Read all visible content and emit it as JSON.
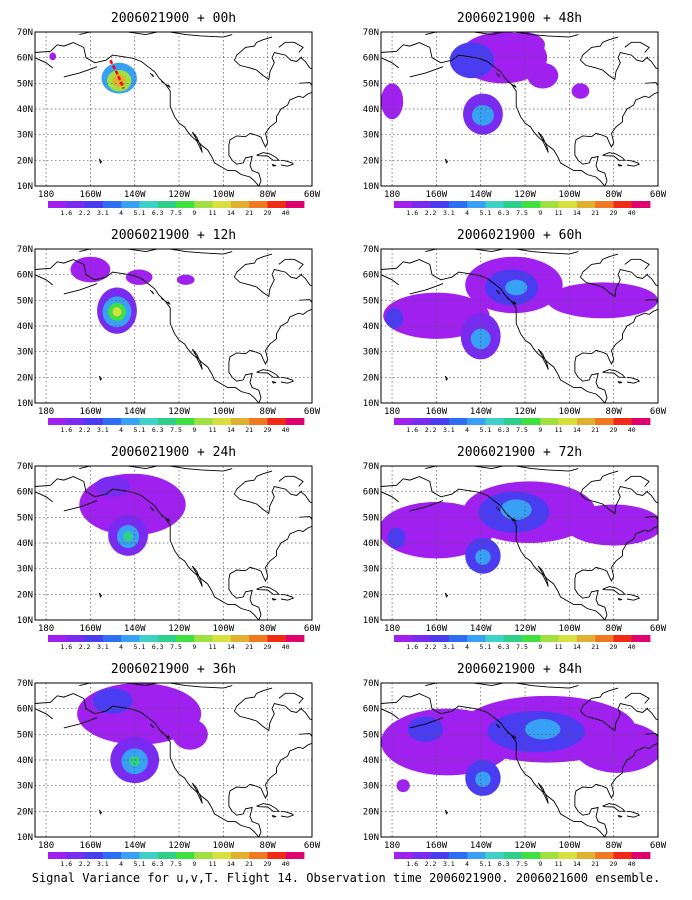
{
  "caption": "Signal Variance for u,v,T. Flight 14. Observation time 2006021900. 2006021600 ensemble.",
  "colors": {
    "levels": [
      "#a020f0",
      "#7a2bf2",
      "#4a3cf0",
      "#2e6ef5",
      "#38a0f5",
      "#3fd0c8",
      "#2fd08a",
      "#40e040",
      "#a0e040",
      "#d8e040",
      "#e0b030",
      "#f07820",
      "#f02a14",
      "#e0006e"
    ],
    "land_outline": "#000000",
    "grid": "#555555",
    "flight_track": "#ff0000"
  },
  "chart_data": [
    {
      "type": "heatmap",
      "panel": "00h",
      "title": "2006021900 + 00h",
      "xticks": [
        "180",
        "160W",
        "140W",
        "120W",
        "100W",
        "80W",
        "60W"
      ],
      "yticks": [
        "10N",
        "20N",
        "30N",
        "40N",
        "50N",
        "60N",
        "70N"
      ],
      "colorbar": [
        "1.6",
        "2.2",
        "3.1",
        "4",
        "5.1",
        "6.3",
        "7.5",
        "9",
        "11",
        "14",
        "21",
        "29",
        "40"
      ],
      "grid": true,
      "xlim": [
        -185,
        -60
      ],
      "ylim": [
        10,
        70
      ],
      "blobs": [
        {
          "lon": -147,
          "lat": 52,
          "rx": 8,
          "ry": 6,
          "level": 4
        },
        {
          "lon": -147,
          "lat": 51,
          "rx": 5.5,
          "ry": 4.2,
          "level": 8
        },
        {
          "lon": -147,
          "lat": 51,
          "rx": 3,
          "ry": 2.5,
          "level": 10
        },
        {
          "lon": -177,
          "lat": 60.5,
          "rx": 1.5,
          "ry": 1.5,
          "level": 0
        }
      ],
      "flight_track": [
        [
          -151,
          59
        ],
        [
          -148,
          54
        ],
        [
          -145,
          48
        ]
      ]
    },
    {
      "type": "heatmap",
      "panel": "48h",
      "title": "2006021900 + 48h",
      "xticks": [
        "180",
        "160W",
        "140W",
        "120W",
        "100W",
        "80W",
        "60W"
      ],
      "yticks": [
        "10N",
        "20N",
        "30N",
        "40N",
        "50N",
        "60N",
        "70N"
      ],
      "colorbar": [
        "1.6",
        "2.2",
        "3.1",
        "4",
        "5.1",
        "6.3",
        "7.5",
        "9",
        "11",
        "14",
        "21",
        "29",
        "40"
      ],
      "grid": true,
      "xlim": [
        -185,
        -60
      ],
      "ylim": [
        10,
        70
      ],
      "blobs": [
        {
          "lon": -130,
          "lat": 60,
          "rx": 20,
          "ry": 10,
          "level": 0
        },
        {
          "lon": -144,
          "lat": 59,
          "rx": 10,
          "ry": 7,
          "level": 2
        },
        {
          "lon": -121,
          "lat": 65,
          "rx": 10,
          "ry": 5,
          "level": 0
        },
        {
          "lon": -112,
          "lat": 53,
          "rx": 7,
          "ry": 5,
          "level": 0
        },
        {
          "lon": -139,
          "lat": 38,
          "rx": 9,
          "ry": 8,
          "level": 1
        },
        {
          "lon": -139,
          "lat": 37.5,
          "rx": 5,
          "ry": 4,
          "level": 4
        },
        {
          "lon": -180,
          "lat": 43,
          "rx": 5,
          "ry": 7,
          "level": 0
        },
        {
          "lon": -95,
          "lat": 47,
          "rx": 4,
          "ry": 3,
          "level": 0
        }
      ]
    },
    {
      "type": "heatmap",
      "panel": "12h",
      "title": "2006021900 + 12h",
      "xticks": [
        "180",
        "160W",
        "140W",
        "120W",
        "100W",
        "80W",
        "60W"
      ],
      "yticks": [
        "10N",
        "20N",
        "30N",
        "40N",
        "50N",
        "60N",
        "70N"
      ],
      "colorbar": [
        "1.6",
        "2.2",
        "3.1",
        "4",
        "5.1",
        "6.3",
        "7.5",
        "9",
        "11",
        "14",
        "21",
        "29",
        "40"
      ],
      "grid": true,
      "xlim": [
        -185,
        -60
      ],
      "ylim": [
        10,
        70
      ],
      "blobs": [
        {
          "lon": -148,
          "lat": 46,
          "rx": 9,
          "ry": 9,
          "level": 1
        },
        {
          "lon": -148,
          "lat": 45.5,
          "rx": 6.5,
          "ry": 6,
          "level": 4
        },
        {
          "lon": -148,
          "lat": 45.5,
          "rx": 4,
          "ry": 3.5,
          "level": 7
        },
        {
          "lon": -148,
          "lat": 45.5,
          "rx": 2,
          "ry": 1.8,
          "level": 9
        },
        {
          "lon": -160,
          "lat": 62,
          "rx": 9,
          "ry": 5,
          "level": 0
        },
        {
          "lon": -138,
          "lat": 59,
          "rx": 6,
          "ry": 3,
          "level": 0
        },
        {
          "lon": -117,
          "lat": 58,
          "rx": 4,
          "ry": 2,
          "level": 0
        }
      ]
    },
    {
      "type": "heatmap",
      "panel": "60h",
      "title": "2006021900 + 60h",
      "xticks": [
        "180",
        "160W",
        "140W",
        "120W",
        "100W",
        "80W",
        "60W"
      ],
      "yticks": [
        "10N",
        "20N",
        "30N",
        "40N",
        "50N",
        "60N",
        "70N"
      ],
      "colorbar": [
        "1.6",
        "2.2",
        "3.1",
        "4",
        "5.1",
        "6.3",
        "7.5",
        "9",
        "11",
        "14",
        "21",
        "29",
        "40"
      ],
      "grid": true,
      "xlim": [
        -185,
        -60
      ],
      "ylim": [
        10,
        70
      ],
      "blobs": [
        {
          "lon": -160,
          "lat": 44,
          "rx": 24,
          "ry": 9,
          "level": 0
        },
        {
          "lon": -125,
          "lat": 56,
          "rx": 22,
          "ry": 11,
          "level": 0
        },
        {
          "lon": -85,
          "lat": 50,
          "rx": 25,
          "ry": 7,
          "level": 0
        },
        {
          "lon": -126,
          "lat": 55,
          "rx": 12,
          "ry": 7,
          "level": 2
        },
        {
          "lon": -124,
          "lat": 55,
          "rx": 5,
          "ry": 3,
          "level": 4
        },
        {
          "lon": -140,
          "lat": 36,
          "rx": 9,
          "ry": 9,
          "level": 1
        },
        {
          "lon": -140,
          "lat": 35,
          "rx": 4.5,
          "ry": 4,
          "level": 4
        },
        {
          "lon": -179,
          "lat": 43,
          "rx": 4,
          "ry": 4,
          "level": 2
        }
      ]
    },
    {
      "type": "heatmap",
      "panel": "24h",
      "title": "2006021900 + 24h",
      "xticks": [
        "180",
        "160W",
        "140W",
        "120W",
        "100W",
        "80W",
        "60W"
      ],
      "yticks": [
        "10N",
        "20N",
        "30N",
        "40N",
        "50N",
        "60N",
        "70N"
      ],
      "colorbar": [
        "1.6",
        "2.2",
        "3.1",
        "4",
        "5.1",
        "6.3",
        "7.5",
        "9",
        "11",
        "14",
        "21",
        "29",
        "40"
      ],
      "grid": true,
      "xlim": [
        -185,
        -60
      ],
      "ylim": [
        10,
        70
      ],
      "blobs": [
        {
          "lon": -141,
          "lat": 55,
          "rx": 24,
          "ry": 12,
          "level": 0
        },
        {
          "lon": -150,
          "lat": 62,
          "rx": 8,
          "ry": 4,
          "level": 1
        },
        {
          "lon": -143,
          "lat": 43,
          "rx": 9,
          "ry": 8,
          "level": 1
        },
        {
          "lon": -143,
          "lat": 42.5,
          "rx": 5,
          "ry": 4.5,
          "level": 4
        },
        {
          "lon": -143,
          "lat": 42.5,
          "rx": 2.2,
          "ry": 2,
          "level": 6
        }
      ]
    },
    {
      "type": "heatmap",
      "panel": "72h",
      "title": "2006021900 + 72h",
      "xticks": [
        "180",
        "160W",
        "140W",
        "120W",
        "100W",
        "80W",
        "60W"
      ],
      "yticks": [
        "10N",
        "20N",
        "30N",
        "40N",
        "50N",
        "60N",
        "70N"
      ],
      "colorbar": [
        "1.6",
        "2.2",
        "3.1",
        "4",
        "5.1",
        "6.3",
        "7.5",
        "9",
        "11",
        "14",
        "21",
        "29",
        "40"
      ],
      "grid": true,
      "xlim": [
        -185,
        -60
      ],
      "ylim": [
        10,
        70
      ],
      "blobs": [
        {
          "lon": -160,
          "lat": 45,
          "rx": 26,
          "ry": 11,
          "level": 0
        },
        {
          "lon": -118,
          "lat": 52,
          "rx": 30,
          "ry": 12,
          "level": 0
        },
        {
          "lon": -80,
          "lat": 47,
          "rx": 22,
          "ry": 8,
          "level": 0
        },
        {
          "lon": -125,
          "lat": 52,
          "rx": 16,
          "ry": 8,
          "level": 2
        },
        {
          "lon": -124,
          "lat": 53,
          "rx": 7,
          "ry": 4,
          "level": 4
        },
        {
          "lon": -139,
          "lat": 35,
          "rx": 8,
          "ry": 7,
          "level": 2
        },
        {
          "lon": -139,
          "lat": 34.5,
          "rx": 3.5,
          "ry": 3,
          "level": 4
        },
        {
          "lon": -178,
          "lat": 42,
          "rx": 4,
          "ry": 4,
          "level": 2
        }
      ]
    },
    {
      "type": "heatmap",
      "panel": "36h",
      "title": "2006021900 + 36h",
      "xticks": [
        "180",
        "160W",
        "140W",
        "120W",
        "100W",
        "80W",
        "60W"
      ],
      "yticks": [
        "10N",
        "20N",
        "30N",
        "40N",
        "50N",
        "60N",
        "70N"
      ],
      "colorbar": [
        "1.6",
        "2.2",
        "3.1",
        "4",
        "5.1",
        "6.3",
        "7.5",
        "9",
        "11",
        "14",
        "21",
        "29",
        "40"
      ],
      "grid": true,
      "xlim": [
        -185,
        -60
      ],
      "ylim": [
        10,
        70
      ],
      "blobs": [
        {
          "lon": -138,
          "lat": 58,
          "rx": 28,
          "ry": 12,
          "level": 0
        },
        {
          "lon": -150,
          "lat": 63,
          "rx": 9,
          "ry": 5,
          "level": 2
        },
        {
          "lon": -115,
          "lat": 50,
          "rx": 8,
          "ry": 6,
          "level": 0
        },
        {
          "lon": -140,
          "lat": 40,
          "rx": 11,
          "ry": 9,
          "level": 1
        },
        {
          "lon": -140,
          "lat": 39.5,
          "rx": 6,
          "ry": 5,
          "level": 4
        },
        {
          "lon": -140,
          "lat": 39.5,
          "rx": 2.5,
          "ry": 2,
          "level": 6
        }
      ]
    },
    {
      "type": "heatmap",
      "panel": "84h",
      "title": "2006021900 + 84h",
      "xticks": [
        "180",
        "160W",
        "140W",
        "120W",
        "100W",
        "80W",
        "60W"
      ],
      "yticks": [
        "10N",
        "20N",
        "30N",
        "40N",
        "50N",
        "60N",
        "70N"
      ],
      "colorbar": [
        "1.6",
        "2.2",
        "3.1",
        "4",
        "5.1",
        "6.3",
        "7.5",
        "9",
        "11",
        "14",
        "21",
        "29",
        "40"
      ],
      "grid": true,
      "xlim": [
        -185,
        -60
      ],
      "ylim": [
        10,
        70
      ],
      "blobs": [
        {
          "lon": -155,
          "lat": 47,
          "rx": 30,
          "ry": 13,
          "level": 0
        },
        {
          "lon": -110,
          "lat": 52,
          "rx": 40,
          "ry": 13,
          "level": 0
        },
        {
          "lon": -78,
          "lat": 45,
          "rx": 20,
          "ry": 10,
          "level": 0
        },
        {
          "lon": -115,
          "lat": 51,
          "rx": 22,
          "ry": 8,
          "level": 2
        },
        {
          "lon": -112,
          "lat": 52,
          "rx": 8,
          "ry": 4,
          "level": 4
        },
        {
          "lon": -139,
          "lat": 33,
          "rx": 8,
          "ry": 7,
          "level": 2
        },
        {
          "lon": -139,
          "lat": 32.5,
          "rx": 3.5,
          "ry": 3,
          "level": 4
        },
        {
          "lon": -165,
          "lat": 52,
          "rx": 8,
          "ry": 5,
          "level": 2
        },
        {
          "lon": -175,
          "lat": 30,
          "rx": 3,
          "ry": 2.5,
          "level": 0
        }
      ]
    }
  ]
}
